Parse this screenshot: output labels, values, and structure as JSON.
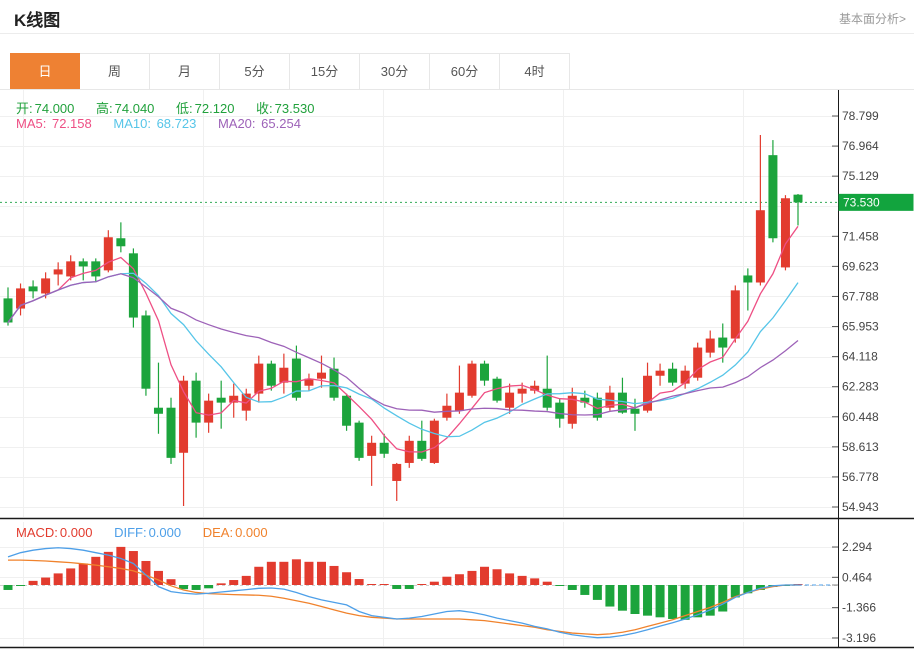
{
  "header": {
    "title": "K线图",
    "link": "基本面分析>"
  },
  "tabs": {
    "items": [
      "日",
      "周",
      "月",
      "5分",
      "15分",
      "30分",
      "60分",
      "4时"
    ],
    "active": "日"
  },
  "legend": {
    "ohlc": [
      {
        "label": "开:",
        "value": "74.000"
      },
      {
        "label": "高:",
        "value": "74.040"
      },
      {
        "label": "低:",
        "value": "72.120"
      },
      {
        "label": "收:",
        "value": "73.530"
      }
    ],
    "ma": [
      {
        "label": "MA5:",
        "value": "72.158",
        "color": "#ee4f84"
      },
      {
        "label": "MA10:",
        "value": "68.723",
        "color": "#56c5e8"
      },
      {
        "label": "MA20:",
        "value": "65.254",
        "color": "#9d62b8"
      }
    ],
    "macd": [
      {
        "label": "MACD:",
        "value": "0.000",
        "color": "#e23b2e"
      },
      {
        "label": "DIFF:",
        "value": "0.000",
        "color": "#4d9fe8"
      },
      {
        "label": "DEA:",
        "value": "0.000",
        "color": "#f0822c"
      }
    ]
  },
  "chart_data": {
    "type": "candlestick+macd",
    "price_axis": {
      "grid_ticks": [
        78.799,
        76.964,
        75.129,
        73.294,
        71.458,
        69.623,
        67.788,
        65.953,
        64.118,
        62.283,
        60.448,
        58.613,
        56.778,
        54.943
      ],
      "label_ticks": [
        78.799,
        76.964,
        75.129,
        71.458,
        69.623,
        67.788,
        65.953,
        64.118,
        62.283,
        60.448,
        58.613,
        56.778,
        54.943
      ],
      "current_price": 73.53,
      "range": [
        54.943,
        78.799
      ]
    },
    "macd_axis": {
      "ticks": [
        2.294,
        0.464,
        -1.366,
        -3.196
      ],
      "range": [
        -3.8,
        3.0
      ]
    },
    "candles_ohlc": [
      [
        67.67,
        68.34,
        66.01,
        66.2
      ],
      [
        67.05,
        68.58,
        66.63,
        68.28
      ],
      [
        68.4,
        68.77,
        67.67,
        68.1
      ],
      [
        67.97,
        69.26,
        67.67,
        68.89
      ],
      [
        69.13,
        69.87,
        68.46,
        69.44
      ],
      [
        69.01,
        70.3,
        68.77,
        69.93
      ],
      [
        69.93,
        70.11,
        68.77,
        69.62
      ],
      [
        69.93,
        70.11,
        68.64,
        69.01
      ],
      [
        69.38,
        71.83,
        69.26,
        71.4
      ],
      [
        71.34,
        72.31,
        70.48,
        70.85
      ],
      [
        70.42,
        70.72,
        65.89,
        66.5
      ],
      [
        66.63,
        66.93,
        61.73,
        62.16
      ],
      [
        61.0,
        63.75,
        59.41,
        60.63
      ],
      [
        61.0,
        61.61,
        57.57,
        57.94
      ],
      [
        58.25,
        62.95,
        55.0,
        62.65
      ],
      [
        62.65,
        63.14,
        59.17,
        60.09
      ],
      [
        60.09,
        61.86,
        59.47,
        61.43
      ],
      [
        61.61,
        62.65,
        59.72,
        61.31
      ],
      [
        61.31,
        62.47,
        60.39,
        61.73
      ],
      [
        60.82,
        62.16,
        60.21,
        61.86
      ],
      [
        61.86,
        64.18,
        61.31,
        63.69
      ],
      [
        63.69,
        63.87,
        62.04,
        62.34
      ],
      [
        62.53,
        64.3,
        61.86,
        63.44
      ],
      [
        64.0,
        64.79,
        61.43,
        61.61
      ],
      [
        62.34,
        63.08,
        62.04,
        62.77
      ],
      [
        62.77,
        64.18,
        62.22,
        63.14
      ],
      [
        63.38,
        64.06,
        61.43,
        61.61
      ],
      [
        61.73,
        61.86,
        59.59,
        59.9
      ],
      [
        60.09,
        60.21,
        57.76,
        57.94
      ],
      [
        58.06,
        59.29,
        56.23,
        58.86
      ],
      [
        58.86,
        59.41,
        57.94,
        58.19
      ],
      [
        56.53,
        57.63,
        55.31,
        57.57
      ],
      [
        57.63,
        59.29,
        57.33,
        58.98
      ],
      [
        58.98,
        60.21,
        57.76,
        57.88
      ],
      [
        57.63,
        60.33,
        57.57,
        60.21
      ],
      [
        60.39,
        61.86,
        60.21,
        61.12
      ],
      [
        60.82,
        63.57,
        60.63,
        61.92
      ],
      [
        61.73,
        63.87,
        61.61,
        63.69
      ],
      [
        63.69,
        63.87,
        62.34,
        62.65
      ],
      [
        62.77,
        62.89,
        61.31,
        61.43
      ],
      [
        61.0,
        62.47,
        60.63,
        61.92
      ],
      [
        61.86,
        62.53,
        61.31,
        62.16
      ],
      [
        62.04,
        62.65,
        61.86,
        62.34
      ],
      [
        62.16,
        64.18,
        60.82,
        61.0
      ],
      [
        61.31,
        61.55,
        59.78,
        60.33
      ],
      [
        60.02,
        62.22,
        59.72,
        61.73
      ],
      [
        61.61,
        62.04,
        61.0,
        61.31
      ],
      [
        61.61,
        61.92,
        60.21,
        60.39
      ],
      [
        61.0,
        62.34,
        60.82,
        61.92
      ],
      [
        61.92,
        62.83,
        60.63,
        60.7
      ],
      [
        60.94,
        61.55,
        59.59,
        60.63
      ],
      [
        60.82,
        63.75,
        60.7,
        62.95
      ],
      [
        62.95,
        63.69,
        62.34,
        63.26
      ],
      [
        63.38,
        63.75,
        62.34,
        62.53
      ],
      [
        62.47,
        63.57,
        62.16,
        63.26
      ],
      [
        62.83,
        64.97,
        62.65,
        64.67
      ],
      [
        64.36,
        65.71,
        64.06,
        65.22
      ],
      [
        65.28,
        66.14,
        63.75,
        64.67
      ],
      [
        65.22,
        68.46,
        64.97,
        68.16
      ],
      [
        69.07,
        69.5,
        66.93,
        68.64
      ],
      [
        68.64,
        77.64,
        68.46,
        73.05
      ],
      [
        76.41,
        77.33,
        71.09,
        71.34
      ],
      [
        69.56,
        73.97,
        69.38,
        73.78
      ],
      [
        74.0,
        74.04,
        72.12,
        73.53
      ]
    ],
    "macd": {
      "hist": [
        -0.3,
        -0.02,
        0.25,
        0.45,
        0.7,
        1.0,
        1.3,
        1.7,
        2.0,
        2.3,
        2.05,
        1.45,
        0.85,
        0.35,
        -0.25,
        -0.3,
        -0.2,
        0.1,
        0.3,
        0.55,
        1.1,
        1.4,
        1.4,
        1.55,
        1.4,
        1.4,
        1.15,
        0.77,
        0.36,
        0.05,
        0.03,
        -0.24,
        -0.24,
        0.03,
        0.2,
        0.5,
        0.65,
        0.85,
        1.1,
        0.95,
        0.7,
        0.55,
        0.4,
        0.2,
        -0.05,
        -0.3,
        -0.6,
        -0.9,
        -1.3,
        -1.55,
        -1.75,
        -1.85,
        -1.95,
        -2.05,
        -2.1,
        -1.95,
        -1.85,
        -1.6,
        -0.75,
        -0.5,
        -0.3,
        -0.12,
        -0.05,
        0.0
      ],
      "diff": [
        1.7,
        1.95,
        2.1,
        2.2,
        2.25,
        2.2,
        2.1,
        1.95,
        1.8,
        1.6,
        1.3,
        0.6,
        -0.1,
        -0.4,
        -0.5,
        -0.55,
        -0.5,
        -0.42,
        -0.35,
        -0.28,
        -0.2,
        -0.18,
        -0.25,
        -0.45,
        -0.7,
        -0.9,
        -1.05,
        -1.2,
        -1.6,
        -1.85,
        -1.95,
        -2.05,
        -2.0,
        -1.9,
        -1.75,
        -1.6,
        -1.55,
        -1.65,
        -1.8,
        -2.0,
        -2.15,
        -2.3,
        -2.5,
        -2.65,
        -2.85,
        -3.0,
        -3.1,
        -3.18,
        -3.15,
        -3.05,
        -2.9,
        -2.7,
        -2.48,
        -2.28,
        -2.05,
        -1.8,
        -1.5,
        -1.15,
        -0.75,
        -0.45,
        -0.2,
        -0.05,
        0.0,
        0.0
      ],
      "dea": [
        1.5,
        1.5,
        1.48,
        1.45,
        1.4,
        1.35,
        1.28,
        1.2,
        1.1,
        1.0,
        0.85,
        0.6,
        0.3,
        -0.05,
        -0.3,
        -0.45,
        -0.52,
        -0.55,
        -0.58,
        -0.6,
        -0.62,
        -0.68,
        -0.8,
        -0.95,
        -1.1,
        -1.3,
        -1.5,
        -1.7,
        -1.85,
        -1.95,
        -2.0,
        -2.05,
        -2.05,
        -2.05,
        -2.05,
        -2.05,
        -2.05,
        -2.1,
        -2.15,
        -2.25,
        -2.35,
        -2.45,
        -2.55,
        -2.7,
        -2.8,
        -2.9,
        -2.95,
        -3.0,
        -2.95,
        -2.85,
        -2.7,
        -2.5,
        -2.3,
        -2.1,
        -1.85,
        -1.6,
        -1.35,
        -1.05,
        -0.7,
        -0.45,
        -0.25,
        -0.1,
        0.0,
        0.0
      ]
    },
    "ma_periods": [
      5,
      10,
      20
    ],
    "colors": {
      "up": "#e23b2e",
      "down": "#1ca43c",
      "ma5": "#ee4f84",
      "ma10": "#56c5e8",
      "ma20": "#9d62b8",
      "diff": "#4d9fe8",
      "dea": "#f0822c",
      "price_tag_bg": "#12a43e",
      "price_dotted_line": "#33ab57",
      "grid": "#f0f0f0",
      "axis": "#1a1a1a",
      "tick_text": "#444444"
    }
  }
}
